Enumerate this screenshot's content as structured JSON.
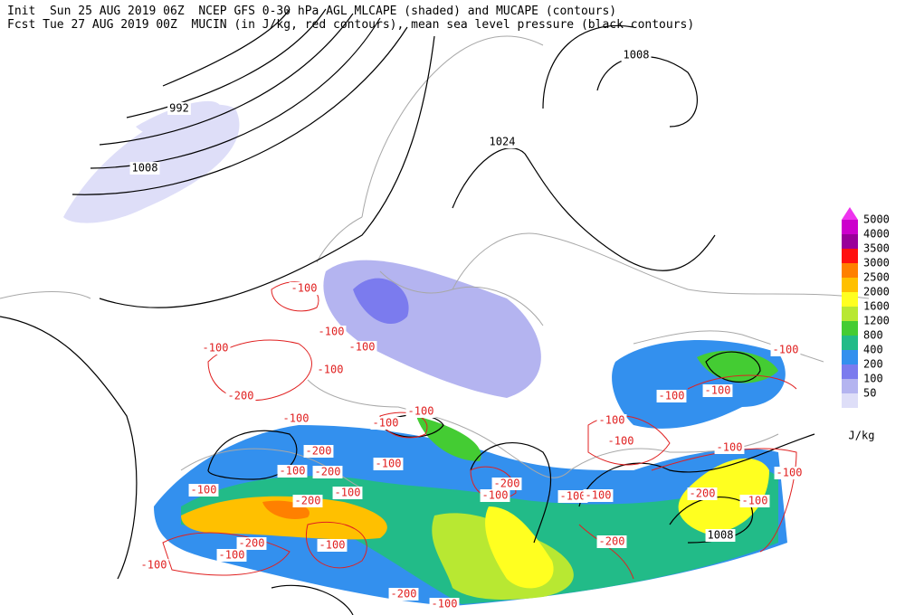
{
  "header": {
    "line1": "Init  Sun 25 AUG 2019 06Z  NCEP GFS 0-30 hPa AGL MLCAPE (shaded) and MUCAPE (contours)",
    "line2": "Fcst Tue 27 AUG 2019 00Z  MUCIN (in J/kg, red contours), mean sea level pressure (black contours)"
  },
  "legend": {
    "levels": [
      5000,
      4000,
      3500,
      3000,
      2500,
      2000,
      1600,
      1200,
      800,
      400,
      200,
      100,
      50
    ],
    "colors": [
      "#ee33ee",
      "#cc00cc",
      "#990099",
      "#ff1010",
      "#ff8000",
      "#ffc000",
      "#ffff20",
      "#b8e832",
      "#44cc33",
      "#22bb88",
      "#3390ee",
      "#7b7bee",
      "#b4b4f0",
      "#dedef8"
    ],
    "unit": "J/kg"
  },
  "isobar_labels": [
    "992",
    "1008",
    "1024",
    "1008",
    "1008"
  ],
  "cin_labels": [
    "-100",
    "-100",
    "-100",
    "-100",
    "-100",
    "-200",
    "-100",
    "-200",
    "-100",
    "-200",
    "-100",
    "-100",
    "-100",
    "-100",
    "-200",
    "-100",
    "-200",
    "-100",
    "-100",
    "-100",
    "-100",
    "-100",
    "-100",
    "-100",
    "-100",
    "-100",
    "-200",
    "-100",
    "-100",
    "-200",
    "-200",
    "-100",
    "-100",
    "-100",
    "-200",
    "-100"
  ]
}
